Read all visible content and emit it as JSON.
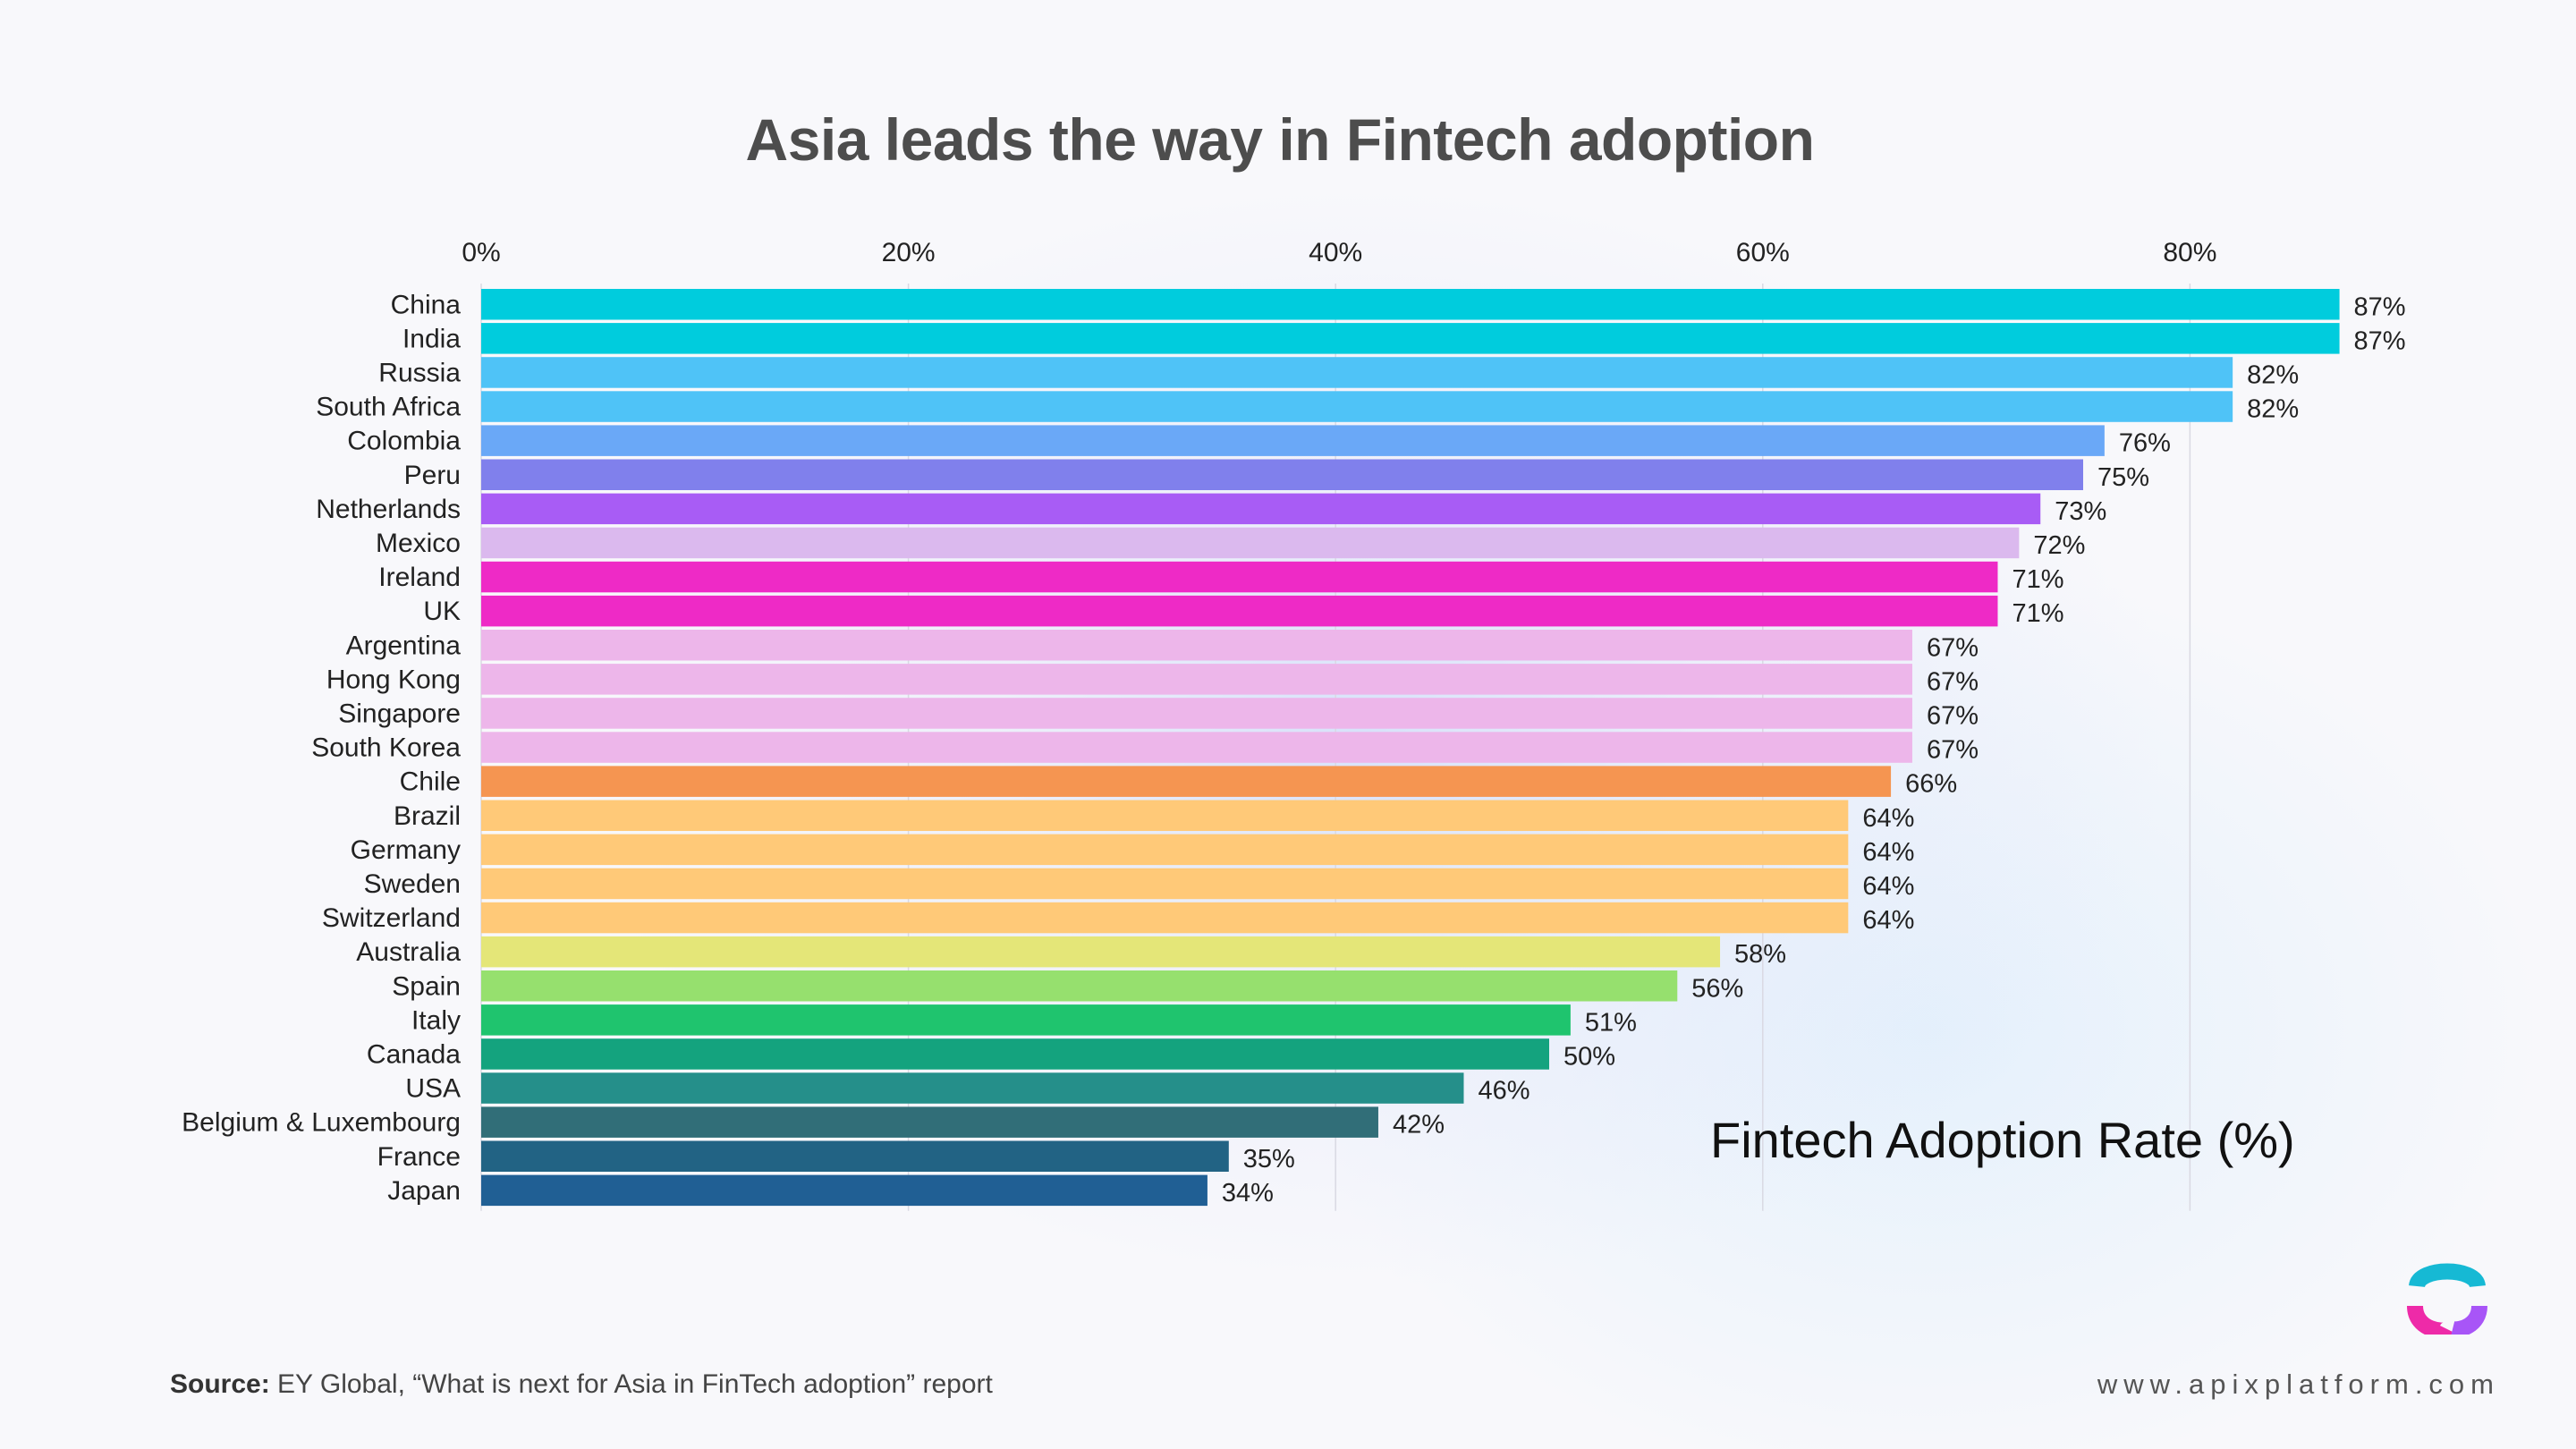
{
  "page": {
    "title": "Asia leads the way in Fintech adoption",
    "source_label": "Source:",
    "source_text": "EY Global, “What is next for Asia in FinTech adoption” report",
    "website": "www.apixplatform.com"
  },
  "icons": {
    "logo": "apix-logo-icon"
  },
  "chart_data": {
    "type": "bar",
    "orientation": "horizontal",
    "title": "Asia leads the way in Fintech adoption",
    "xlabel": "Fintech Adoption Rate (%)",
    "ylabel": "",
    "xlim": [
      0,
      87
    ],
    "xticks": [
      0,
      20,
      40,
      60,
      80
    ],
    "xtick_labels": [
      "0%",
      "20%",
      "40%",
      "60%",
      "80%"
    ],
    "xaxis_position": "top",
    "grid": true,
    "legend": "none",
    "value_suffix": "%",
    "categories": [
      "China",
      "India",
      "Russia",
      "South Africa",
      "Colombia",
      "Peru",
      "Netherlands",
      "Mexico",
      "Ireland",
      "UK",
      "Argentina",
      "Hong Kong",
      "Singapore",
      "South Korea",
      "Chile",
      "Brazil",
      "Germany",
      "Sweden",
      "Switzerland",
      "Australia",
      "Spain",
      "Italy",
      "Canada",
      "USA",
      "Belgium & Luxembourg",
      "France",
      "Japan"
    ],
    "values": [
      87,
      87,
      82,
      82,
      76,
      75,
      73,
      72,
      71,
      71,
      67,
      67,
      67,
      67,
      66,
      64,
      64,
      64,
      64,
      58,
      56,
      51,
      50,
      46,
      42,
      35,
      34
    ],
    "colors": [
      "#00CCDD",
      "#00CCDD",
      "#4FC3F7",
      "#4FC3F7",
      "#6AA8F7",
      "#8080EC",
      "#A85CF5",
      "#DBB9EE",
      "#EE2AC6",
      "#EE2AC6",
      "#EDB6EA",
      "#EDB6EA",
      "#EDB6EA",
      "#EDB6EA",
      "#F59551",
      "#FFC978",
      "#FFC978",
      "#FFC978",
      "#FFC978",
      "#E4E678",
      "#96E06E",
      "#1FC46E",
      "#14A37E",
      "#258F8A",
      "#316E78",
      "#226384",
      "#205F94"
    ]
  }
}
